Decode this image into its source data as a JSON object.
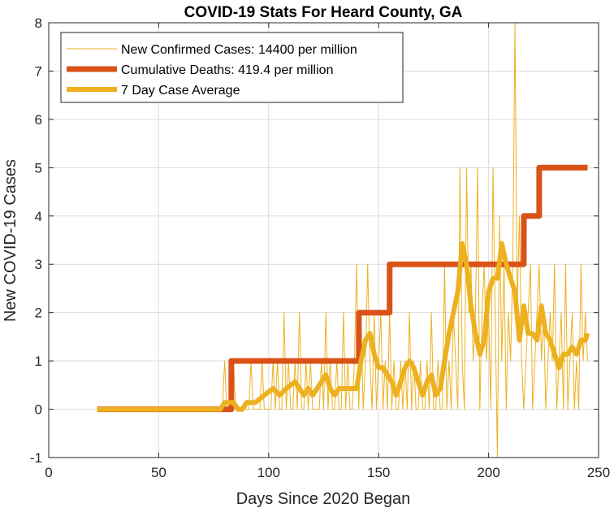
{
  "chart_data": {
    "type": "line",
    "title": "COVID-19 Stats For Heard County, GA",
    "xlabel": "Days Since 2020 Began",
    "ylabel": "New COVID-19 Cases",
    "xlim": [
      0,
      250
    ],
    "ylim": [
      -1,
      8
    ],
    "xticks": [
      "0",
      "50",
      "100",
      "150",
      "200",
      "250"
    ],
    "yticks": [
      "-1",
      "0",
      "1",
      "2",
      "3",
      "4",
      "5",
      "6",
      "7",
      "8"
    ],
    "grid": true,
    "legend_position": "top-left",
    "series": [
      {
        "name": "New Confirmed Cases: 14400 per million",
        "color": "#EDB120",
        "width": 1,
        "x": [
          22,
          40,
          60,
          79,
          80,
          81,
          82,
          83,
          84,
          85,
          86,
          87,
          88,
          89,
          90,
          91,
          92,
          93,
          94,
          95,
          96,
          97,
          98,
          99,
          100,
          101,
          102,
          103,
          104,
          105,
          106,
          107,
          108,
          109,
          110,
          111,
          112,
          113,
          114,
          115,
          116,
          117,
          118,
          119,
          120,
          121,
          122,
          123,
          124,
          125,
          126,
          127,
          128,
          129,
          130,
          131,
          132,
          133,
          134,
          135,
          136,
          137,
          138,
          139,
          140,
          141,
          142,
          143,
          144,
          145,
          146,
          147,
          148,
          149,
          150,
          151,
          152,
          153,
          154,
          155,
          156,
          157,
          158,
          159,
          160,
          161,
          162,
          163,
          164,
          165,
          166,
          167,
          168,
          169,
          170,
          171,
          172,
          173,
          174,
          175,
          176,
          177,
          178,
          179,
          180,
          181,
          182,
          183,
          184,
          185,
          186,
          187,
          188,
          189,
          190,
          191,
          192,
          193,
          194,
          195,
          196,
          197,
          198,
          199,
          200,
          201,
          202,
          203,
          204,
          205,
          206,
          207,
          208,
          209,
          210,
          211,
          212,
          213,
          214,
          215,
          216,
          217,
          218,
          219,
          220,
          221,
          222,
          223,
          224,
          225,
          226,
          227,
          228,
          229,
          230,
          231,
          232,
          233,
          234,
          235,
          236,
          237,
          238,
          239,
          240,
          241,
          242,
          243,
          244,
          245
        ],
        "y": [
          0,
          0,
          0,
          0,
          1,
          0,
          0,
          0,
          1,
          0,
          0,
          0,
          0,
          0,
          0,
          0,
          1,
          0,
          0,
          0,
          0,
          1,
          0,
          0,
          0,
          0,
          1,
          0,
          1,
          0,
          0,
          2,
          0,
          1,
          0,
          0,
          1,
          0,
          2,
          0,
          0,
          1,
          0,
          1,
          0,
          0,
          0,
          0,
          1,
          0,
          2,
          0,
          1,
          0,
          0,
          1,
          0,
          0,
          2,
          0,
          1,
          0,
          0,
          1,
          3,
          0,
          2,
          0,
          1,
          3,
          1,
          0,
          2,
          0,
          1,
          2,
          0,
          1,
          0,
          2,
          0,
          1,
          0,
          0,
          1,
          0,
          1,
          0,
          2,
          0,
          1,
          0,
          0,
          1,
          0,
          0,
          1,
          0,
          2,
          0,
          0,
          1,
          0,
          0,
          3,
          0,
          1,
          0,
          2,
          1,
          0,
          5,
          1,
          0,
          5,
          2,
          3,
          1,
          2,
          5,
          0,
          2,
          3,
          1,
          2,
          0,
          5,
          2,
          -1,
          4,
          1,
          3,
          0,
          2,
          1,
          3,
          8,
          2,
          4,
          1,
          0,
          1,
          2,
          3,
          0,
          1,
          2,
          3,
          1,
          2,
          0,
          1,
          2,
          1,
          3,
          0,
          1,
          2,
          0,
          3,
          0,
          1,
          2,
          0,
          1,
          0,
          3,
          1,
          2,
          1
        ]
      },
      {
        "name": "Cumulative Deaths: 419.4 per million",
        "color": "#D95319",
        "width": 7,
        "x": [
          22,
          81,
          83,
          83.01,
          141,
          141.01,
          155,
          155.01,
          216,
          216.01,
          223,
          223.01,
          245
        ],
        "y": [
          0,
          0,
          0,
          1,
          1,
          2,
          2,
          3,
          3,
          4,
          4,
          5,
          5
        ]
      },
      {
        "name": "7 Day Case Average",
        "color": "#EDB120",
        "width": 6,
        "x": [
          22,
          78,
          80,
          84,
          86,
          88,
          90,
          94,
          98,
          102,
          105,
          108,
          112,
          116,
          118,
          120,
          124,
          126,
          128,
          130,
          132,
          134,
          138,
          140,
          142,
          144,
          146,
          148,
          150,
          152,
          154,
          156,
          158,
          160,
          162,
          164,
          166,
          168,
          170,
          172,
          174,
          176,
          178,
          180,
          182,
          184,
          186,
          188,
          190,
          192,
          194,
          196,
          198,
          200,
          202,
          204,
          206,
          208,
          210,
          212,
          214,
          216,
          218,
          220,
          222,
          224,
          226,
          228,
          230,
          232,
          234,
          236,
          238,
          240,
          242,
          244,
          245
        ],
        "y": [
          0,
          0,
          0.14,
          0.14,
          0,
          0,
          0.14,
          0.14,
          0.29,
          0.43,
          0.29,
          0.43,
          0.57,
          0.29,
          0.43,
          0.29,
          0.57,
          0.71,
          0.43,
          0.29,
          0.43,
          0.43,
          0.43,
          0.43,
          1.0,
          1.43,
          1.57,
          1.14,
          0.86,
          0.86,
          0.71,
          0.57,
          0.29,
          0.57,
          0.86,
          1.0,
          0.86,
          0.57,
          0.29,
          0.57,
          0.71,
          0.29,
          0.43,
          1.0,
          1.57,
          2.0,
          2.43,
          3.43,
          3.0,
          2.14,
          1.57,
          1.14,
          1.43,
          2.43,
          2.71,
          2.71,
          3.43,
          3.0,
          2.71,
          2.43,
          1.43,
          2.14,
          1.57,
          1.57,
          1.43,
          2.14,
          1.57,
          1.43,
          1.14,
          0.86,
          1.14,
          1.14,
          1.29,
          1.14,
          1.43,
          1.43,
          1.57
        ]
      }
    ]
  }
}
